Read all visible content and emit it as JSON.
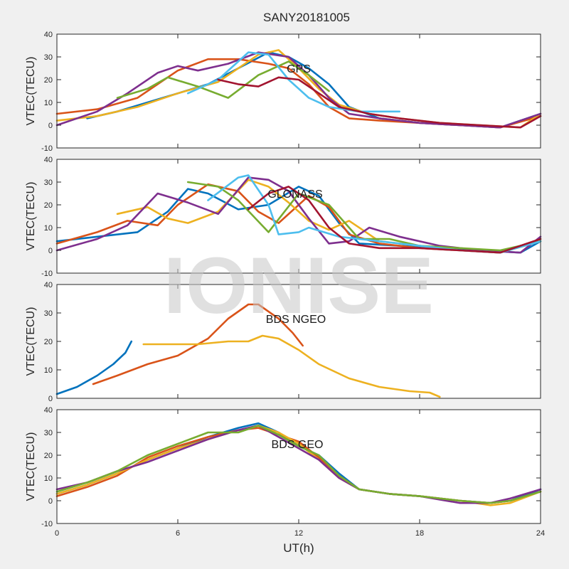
{
  "figure": {
    "title": "SANY20181005",
    "xlabel": "UT(h)",
    "watermark": "IONISE"
  },
  "chart_data": [
    {
      "type": "line",
      "annotation": "GPS",
      "ylabel": "VTEC(TECU)",
      "xlim": [
        0,
        24
      ],
      "ylim": [
        -10,
        40
      ],
      "xticks": [
        0,
        6,
        12,
        18,
        24
      ],
      "yticks": [
        -10,
        0,
        10,
        20,
        30,
        40
      ],
      "grid": false,
      "series": [
        {
          "color": "#0072bd",
          "x": [
            1.5,
            3,
            4.5,
            6,
            7.5,
            9,
            10.5,
            11.5,
            12.5,
            13.5,
            14.5,
            16,
            18,
            20,
            22,
            24
          ],
          "y": [
            3,
            6,
            10,
            14,
            18,
            25,
            32,
            30,
            25,
            18,
            8,
            3,
            1,
            0,
            -1,
            5
          ]
        },
        {
          "color": "#d95319",
          "x": [
            0,
            2,
            4,
            6,
            7.5,
            9,
            10.5,
            11.5,
            12.5,
            13.5,
            14.5,
            16,
            18,
            20,
            22,
            24
          ],
          "y": [
            5,
            7,
            12,
            24,
            29,
            29,
            27,
            25,
            18,
            8,
            3,
            2,
            1,
            0,
            -1,
            4
          ]
        },
        {
          "color": "#edb120",
          "x": [
            0,
            2,
            4,
            6,
            8,
            10,
            11,
            12,
            13,
            14,
            15.5,
            17,
            19,
            21,
            23,
            24
          ],
          "y": [
            2,
            4,
            8,
            14,
            19,
            31,
            33,
            25,
            16,
            9,
            5,
            3,
            1,
            0,
            -1,
            5
          ]
        },
        {
          "color": "#7e2f8e",
          "x": [
            0,
            2,
            3.5,
            5,
            6,
            7,
            8.5,
            10,
            11.5,
            12.5,
            13.5,
            14.5,
            16,
            18,
            20,
            22,
            24
          ],
          "y": [
            0,
            6,
            14,
            23,
            26,
            24,
            27,
            32,
            30,
            22,
            12,
            5,
            3,
            1,
            0,
            -1,
            5
          ]
        },
        {
          "color": "#77ac30",
          "x": [
            3,
            4.5,
            5.5,
            7,
            8.5,
            10,
            11.5,
            12.5,
            13.5
          ],
          "y": [
            12,
            16,
            21,
            17,
            12,
            22,
            28,
            22,
            15
          ]
        },
        {
          "color": "#4dbeee",
          "x": [
            6.5,
            8,
            9.5,
            10.5,
            11.5,
            12.5,
            13.5,
            15,
            16.5,
            17
          ],
          "y": [
            14,
            20,
            32,
            31,
            20,
            12,
            8,
            6,
            6,
            6
          ]
        },
        {
          "color": "#a2142f",
          "x": [
            8,
            9,
            10,
            11,
            12,
            13,
            14,
            15.5,
            17,
            19,
            21,
            23,
            24
          ],
          "y": [
            20,
            18,
            17,
            21,
            20,
            14,
            8,
            5,
            3,
            1,
            0,
            -1,
            4
          ]
        }
      ]
    },
    {
      "type": "line",
      "annotation": "GLONASS",
      "ylabel": "VTEC(TECU)",
      "xlim": [
        0,
        24
      ],
      "ylim": [
        -10,
        40
      ],
      "xticks": [
        0,
        6,
        12,
        18,
        24
      ],
      "yticks": [
        -10,
        0,
        10,
        20,
        30,
        40
      ],
      "grid": false,
      "series": [
        {
          "color": "#0072bd",
          "x": [
            0,
            2,
            4,
            5.5,
            6.5,
            7.5,
            9,
            10.5,
            12,
            13,
            14,
            15,
            17,
            19,
            21,
            23,
            24
          ],
          "y": [
            4,
            6,
            8,
            17,
            27,
            25,
            18,
            20,
            28,
            24,
            12,
            3,
            2,
            1,
            0,
            -1,
            4
          ]
        },
        {
          "color": "#d95319",
          "x": [
            0,
            2,
            3.5,
            5,
            6,
            7.5,
            9,
            10,
            11,
            12.5,
            13.5,
            14.5,
            16,
            18,
            20,
            22,
            24
          ],
          "y": [
            3,
            8,
            13,
            11,
            20,
            29,
            26,
            17,
            12,
            24,
            19,
            7,
            3,
            1,
            0,
            -1,
            5
          ]
        },
        {
          "color": "#edb120",
          "x": [
            3,
            4.5,
            5.5,
            6.5,
            8,
            9.5,
            10.5,
            11.5,
            12.5,
            13.5,
            14.5,
            16,
            18,
            20,
            22,
            24
          ],
          "y": [
            16,
            19,
            14,
            12,
            17,
            31,
            28,
            21,
            13,
            9,
            13,
            4,
            2,
            0,
            -1,
            4
          ]
        },
        {
          "color": "#7e2f8e",
          "x": [
            0,
            2,
            3.5,
            5,
            6.5,
            8,
            9.5,
            10.5,
            11.5,
            12.5,
            13.5,
            14.5,
            15.5,
            17,
            19,
            21,
            23,
            24
          ],
          "y": [
            0,
            5,
            11,
            25,
            21,
            16,
            32,
            31,
            26,
            14,
            3,
            4,
            10,
            6,
            2,
            0,
            -1,
            6
          ]
        },
        {
          "color": "#77ac30",
          "x": [
            6.5,
            8,
            9,
            10.5,
            12,
            13.5,
            15,
            16.5,
            18,
            20,
            22,
            24
          ],
          "y": [
            30,
            28,
            22,
            8,
            25,
            20,
            5,
            5,
            2,
            1,
            0,
            4
          ]
        },
        {
          "color": "#4dbeee",
          "x": [
            7.5,
            9,
            9.5,
            10.5,
            11,
            12,
            12.5,
            14,
            16,
            18,
            20,
            22,
            24
          ],
          "y": [
            22,
            32,
            33,
            20,
            7,
            8,
            10,
            6,
            4,
            2,
            0,
            -1,
            4
          ]
        },
        {
          "color": "#a2142f",
          "x": [
            9.5,
            10.5,
            11.5,
            12.5,
            13.5,
            14.5,
            16,
            18,
            20,
            22,
            24
          ],
          "y": [
            18,
            25,
            28,
            22,
            10,
            3,
            1,
            1,
            0,
            -1,
            5
          ]
        }
      ]
    },
    {
      "type": "line",
      "annotation": "BDS NGEO",
      "ylabel": "VTEC(TECU)",
      "xlim": [
        0,
        24
      ],
      "ylim": [
        0,
        40
      ],
      "xticks": [
        0,
        6,
        12,
        18,
        24
      ],
      "yticks": [
        0,
        10,
        20,
        30,
        40
      ],
      "grid": false,
      "series": [
        {
          "color": "#0072bd",
          "x": [
            0,
            1,
            2,
            2.8,
            3.4,
            3.7
          ],
          "y": [
            1.5,
            4,
            8,
            12,
            16,
            20
          ]
        },
        {
          "color": "#d95319",
          "x": [
            1.8,
            3,
            4.5,
            6,
            7.5,
            8.5,
            9.5,
            10,
            11,
            11.7,
            12.2
          ],
          "y": [
            5,
            8,
            12,
            15,
            21,
            28,
            33,
            33,
            28,
            23,
            18.5
          ]
        },
        {
          "color": "#edb120",
          "x": [
            4.3,
            5.5,
            7,
            8.5,
            9.5,
            10.2,
            11,
            12,
            13,
            14.5,
            16,
            17.5,
            18.5,
            19
          ],
          "y": [
            19,
            19,
            19,
            20,
            20,
            22,
            21,
            17,
            12,
            7,
            4,
            2.5,
            2,
            0.5
          ]
        }
      ]
    },
    {
      "type": "line",
      "annotation": "BDS GEO",
      "ylabel": "VTEC(TECU)",
      "xlim": [
        0,
        24
      ],
      "ylim": [
        -10,
        40
      ],
      "xticks": [
        0,
        6,
        12,
        18,
        24
      ],
      "yticks": [
        -10,
        0,
        10,
        20,
        30,
        40
      ],
      "grid": false,
      "series": [
        {
          "color": "#0072bd",
          "x": [
            0,
            1.5,
            3,
            4.5,
            6,
            7.5,
            9,
            10,
            11,
            12,
            13,
            14,
            15,
            16.5,
            18,
            20,
            21.5,
            22.5,
            24
          ],
          "y": [
            3,
            7,
            12,
            18,
            23,
            28,
            32,
            34,
            30,
            24,
            20,
            12,
            5,
            3,
            2,
            0,
            -1,
            0,
            5
          ]
        },
        {
          "color": "#d95319",
          "x": [
            0,
            1.5,
            3,
            4.5,
            6,
            7.5,
            9,
            10,
            11,
            12,
            13,
            14,
            15,
            16.5,
            18,
            20,
            21.5,
            22.5,
            24
          ],
          "y": [
            2,
            6,
            11,
            19,
            24,
            28,
            31,
            32,
            29,
            26,
            19,
            11,
            5,
            3,
            2,
            0,
            -1,
            0,
            4
          ]
        },
        {
          "color": "#edb120",
          "x": [
            0,
            1.5,
            3,
            4.5,
            6,
            7.5,
            9,
            10,
            11,
            12,
            13,
            14,
            15,
            16.5,
            18,
            20,
            21.5,
            22.5,
            24
          ],
          "y": [
            3,
            7,
            12,
            18,
            23,
            27,
            31,
            33,
            30,
            25,
            18,
            10,
            5,
            3,
            2,
            0,
            -2,
            -1,
            4
          ]
        },
        {
          "color": "#7e2f8e",
          "x": [
            0,
            1.5,
            3,
            4.5,
            6,
            7.5,
            9,
            10,
            11,
            12,
            13,
            14,
            15,
            16.5,
            18,
            20,
            21.5,
            22.5,
            24
          ],
          "y": [
            5,
            8,
            13,
            17,
            22,
            27,
            31,
            33,
            28,
            23,
            18,
            10,
            5,
            3,
            2,
            -1,
            -1,
            1,
            5
          ]
        },
        {
          "color": "#77ac30",
          "x": [
            0,
            1.5,
            3,
            4.5,
            6,
            7.5,
            9,
            10,
            11,
            12,
            13,
            14,
            15,
            16.5,
            18,
            20,
            21.5,
            22.5,
            24
          ],
          "y": [
            4,
            8,
            13,
            20,
            25,
            30,
            30,
            33,
            29,
            24,
            20,
            11,
            5,
            3,
            2,
            0,
            -1,
            0,
            4
          ]
        }
      ]
    }
  ]
}
